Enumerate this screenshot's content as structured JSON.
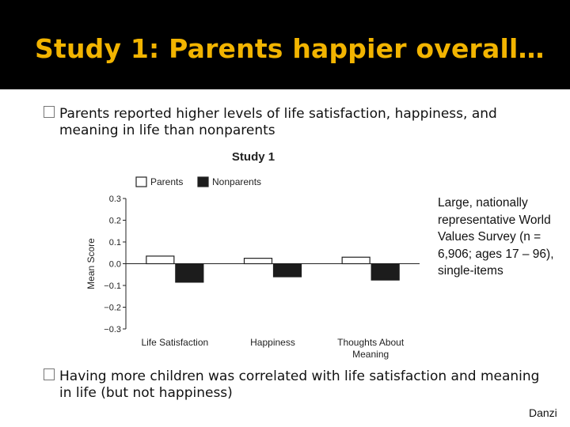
{
  "slide": {
    "title": "Study 1: Parents happier overall…",
    "bullet1": "Parents reported higher levels of life satisfaction, happiness, and meaning in life than nonparents",
    "bullet2": "Having more children was correlated with life satisfaction and meaning in life (but not happiness)",
    "bullet_glyph": "",
    "note": "Large, nationally representative World Values Survey (n = 6,906; ages 17 – 96), single-items",
    "credit": "Danzi"
  },
  "chart_data": {
    "type": "bar",
    "title": "Study 1",
    "ylabel": "Mean Score",
    "xlabel": "",
    "categories": [
      "Life Satisfaction",
      "Happiness",
      "Thoughts About\nMeaning"
    ],
    "series": [
      {
        "name": "Parents",
        "values": [
          0.035,
          0.025,
          0.03
        ],
        "fill": "#ffffff",
        "stroke": "#222222"
      },
      {
        "name": "Nonparents",
        "values": [
          -0.085,
          -0.06,
          -0.075
        ],
        "fill": "#1c1c1c",
        "stroke": "#1c1c1c"
      }
    ],
    "ylim": [
      -0.3,
      0.3
    ],
    "yticks": [
      0.3,
      0.2,
      0.1,
      0.0,
      -0.1,
      -0.2,
      -0.3
    ],
    "ytick_labels": [
      "0.3",
      "0.2",
      "0.1",
      "0.0",
      "−0.1",
      "−0.2",
      "−0.3"
    ],
    "legend_position": "top-left",
    "grid": false
  }
}
